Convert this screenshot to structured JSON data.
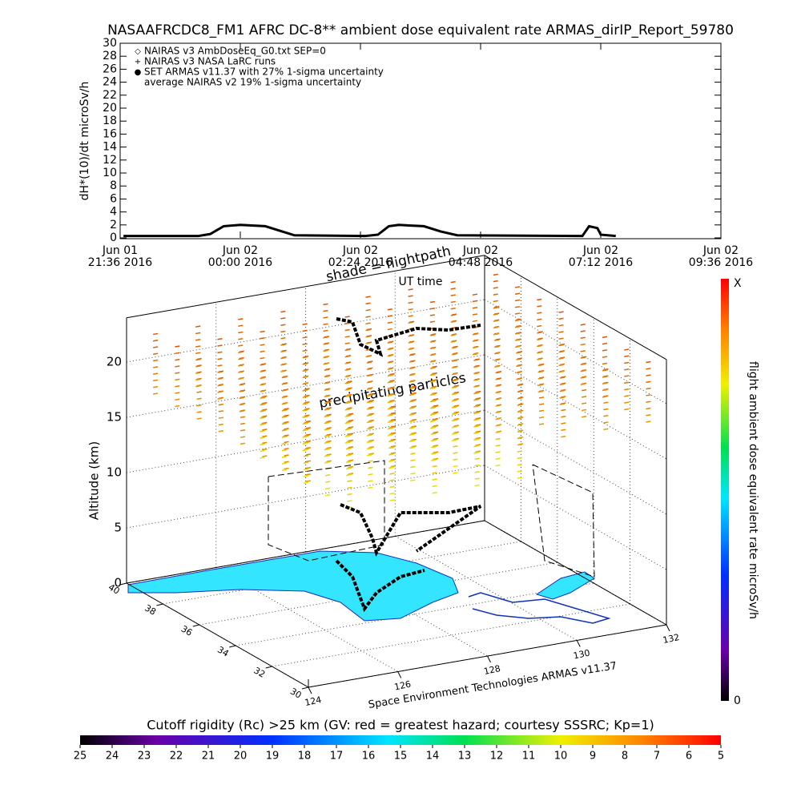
{
  "chart_data": [
    {
      "type": "line",
      "title": "NASAAFRCDC8_FM1 AFRC DC-8** ambient dose equivalent rate ARMAS_dirIP_Report_59780",
      "ylabel": "dH*(10)/dt microSv/h",
      "xlabel": "UT time",
      "xlim": [
        "2016-06-01 21:36",
        "2016-06-02 09:36"
      ],
      "xticks": [
        {
          "value": "2016-06-01 21:36",
          "label": [
            "Jun 01",
            "21:36 2016"
          ]
        },
        {
          "value": "2016-06-02 00:00",
          "label": [
            "Jun 02",
            "00:00 2016"
          ]
        },
        {
          "value": "2016-06-02 02:24",
          "label": [
            "Jun 02",
            "02:24 2016"
          ]
        },
        {
          "value": "2016-06-02 04:48",
          "label": [
            "Jun 02",
            "04:48 2016"
          ]
        },
        {
          "value": "2016-06-02 07:12",
          "label": [
            "Jun 02",
            "07:12 2016"
          ]
        },
        {
          "value": "2016-06-02 09:36",
          "label": [
            "Jun 02",
            "09:36 2016"
          ]
        }
      ],
      "ylim": [
        0,
        30
      ],
      "yticks": [
        0,
        2,
        4,
        6,
        8,
        10,
        12,
        14,
        16,
        18,
        20,
        22,
        24,
        26,
        28,
        30
      ],
      "series": [
        {
          "name": "NAIRAS v3 AmbDoseEq_G0.txt SEP=0",
          "marker": "diamond",
          "color": "#000000",
          "x": [
            "2016-06-01 21:40",
            "2016-06-01 23:10",
            "2016-06-01 23:24",
            "2016-06-01 23:40",
            "2016-06-02 00:00",
            "2016-06-02 00:30",
            "2016-06-02 00:50",
            "2016-06-02 01:05",
            "2016-06-02 02:30",
            "2016-06-02 02:45",
            "2016-06-02 02:58",
            "2016-06-02 03:10",
            "2016-06-02 03:40",
            "2016-06-02 04:00",
            "2016-06-02 04:20",
            "2016-06-02 06:50",
            "2016-06-02 06:58",
            "2016-06-02 07:08",
            "2016-06-02 07:12",
            "2016-06-02 07:30"
          ],
          "values": [
            0.3,
            0.3,
            0.6,
            1.8,
            2.0,
            1.8,
            1.0,
            0.4,
            0.3,
            0.5,
            1.8,
            2.0,
            1.8,
            1.0,
            0.4,
            0.3,
            1.8,
            1.5,
            0.5,
            0.3
          ]
        },
        {
          "name": "NAIRAS v3 NASA LaRC runs",
          "marker": "plus",
          "color": "#000000"
        },
        {
          "name": "SET ARMAS v11.37 with 27% 1-sigma uncertainty",
          "marker": "dot",
          "color": "#1f3fff"
        },
        {
          "name": "average NAIRAS v2 19% 1-sigma uncertainty",
          "marker": "none",
          "color": "#000000"
        }
      ]
    },
    {
      "type": "surface3d",
      "annotations": [
        "shade = flightpath",
        "precipitating particles"
      ],
      "zlabel": "Altitude (km)",
      "credit": "Space Environment Technologies ARMAS v11.37",
      "zlim": [
        0,
        24
      ],
      "zticks": [
        0,
        5,
        10,
        15,
        20
      ],
      "latlim": [
        40,
        30
      ],
      "latticks": [
        40,
        38,
        36,
        34,
        32,
        30
      ],
      "lonlim": [
        124,
        132
      ],
      "lonticks": [
        124,
        126,
        128,
        130,
        132
      ],
      "land_color": "#33e5ff",
      "colorbar": {
        "label": "flight ambient dose equivalent rate microSv/h",
        "top_label": "X",
        "bottom_label": "0"
      }
    },
    {
      "type": "colorbar",
      "title": "Cutoff rigidity (Rc) >25 km (GV: red = greatest hazard; courtesy SSSRC; Kp=1)",
      "lim": [
        25,
        5
      ],
      "ticks": [
        25,
        24,
        23,
        22,
        21,
        20,
        19,
        18,
        17,
        16,
        15,
        14,
        13,
        12,
        11,
        10,
        9,
        8,
        7,
        6,
        5
      ]
    }
  ]
}
